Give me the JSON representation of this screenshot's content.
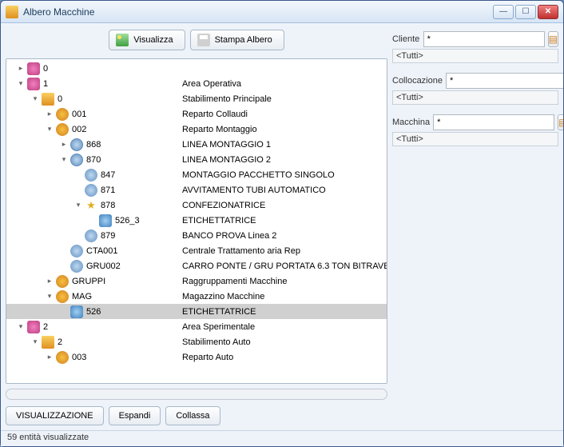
{
  "window": {
    "title": "Albero Macchine"
  },
  "toolbar": {
    "view": "Visualizza",
    "print": "Stampa Albero"
  },
  "tree": [
    {
      "lvl": 0,
      "exp": "collapsed",
      "icon": "area",
      "code": "0",
      "desc": "",
      "sel": false
    },
    {
      "lvl": 0,
      "exp": "expanded",
      "icon": "area",
      "code": "1",
      "desc": "Area Operativa",
      "sel": false
    },
    {
      "lvl": 1,
      "exp": "expanded",
      "icon": "plant",
      "code": "0",
      "desc": "Stabilimento Principale",
      "sel": false
    },
    {
      "lvl": 2,
      "exp": "collapsed",
      "icon": "dept",
      "code": "001",
      "desc": "Reparto Collaudi",
      "sel": false
    },
    {
      "lvl": 2,
      "exp": "expanded",
      "icon": "dept",
      "code": "002",
      "desc": "Reparto Montaggio",
      "sel": false
    },
    {
      "lvl": 3,
      "exp": "collapsed",
      "icon": "line",
      "code": "868",
      "desc": "LINEA MONTAGGIO 1",
      "sel": false
    },
    {
      "lvl": 3,
      "exp": "expanded",
      "icon": "line",
      "code": "870",
      "desc": "LINEA MONTAGGIO 2",
      "sel": false
    },
    {
      "lvl": 4,
      "exp": "leaf",
      "icon": "mach",
      "code": "847",
      "desc": "MONTAGGIO PACCHETTO SINGOLO",
      "sel": false
    },
    {
      "lvl": 4,
      "exp": "leaf",
      "icon": "mach",
      "code": "871",
      "desc": "AVVITAMENTO TUBI AUTOMATICO",
      "sel": false
    },
    {
      "lvl": 4,
      "exp": "expanded",
      "icon": "star",
      "code": "878",
      "desc": "CONFEZIONATRICE",
      "sel": false
    },
    {
      "lvl": 5,
      "exp": "leaf",
      "icon": "tag",
      "code": "526_3",
      "desc": "ETICHETTATRICE",
      "sel": false
    },
    {
      "lvl": 4,
      "exp": "leaf",
      "icon": "mach",
      "code": "879",
      "desc": "BANCO PROVA Linea 2",
      "sel": false
    },
    {
      "lvl": 3,
      "exp": "leaf",
      "icon": "mach",
      "code": "CTA001",
      "desc": "Centrale Trattamento aria Rep",
      "sel": false
    },
    {
      "lvl": 3,
      "exp": "leaf",
      "icon": "mach",
      "code": "GRU002",
      "desc": "CARRO PONTE / GRU PORTATA 6.3 TON BITRAVE",
      "sel": false
    },
    {
      "lvl": 2,
      "exp": "collapsed",
      "icon": "dept",
      "code": "GRUPPI",
      "desc": "Raggruppamenti Macchine",
      "sel": false
    },
    {
      "lvl": 2,
      "exp": "expanded",
      "icon": "dept",
      "code": "MAG",
      "desc": "Magazzino Macchine",
      "sel": false
    },
    {
      "lvl": 3,
      "exp": "leaf",
      "icon": "tag",
      "code": "526",
      "desc": "ETICHETTATRICE",
      "sel": true
    },
    {
      "lvl": 0,
      "exp": "expanded",
      "icon": "area",
      "code": "2",
      "desc": "Area Sperimentale",
      "sel": false
    },
    {
      "lvl": 1,
      "exp": "expanded",
      "icon": "plant",
      "code": "2",
      "desc": "Stabilimento Auto",
      "sel": false
    },
    {
      "lvl": 2,
      "exp": "collapsed",
      "icon": "dept",
      "code": "003",
      "desc": "Reparto Auto",
      "sel": false
    }
  ],
  "bottom": {
    "viz": "VISUALIZZAZIONE",
    "expand": "Espandi",
    "collapse": "Collassa"
  },
  "filters": {
    "cliente": {
      "label": "Cliente",
      "value": "*",
      "current": "<Tutti>"
    },
    "collocazione": {
      "label": "Collocazione",
      "value": "*",
      "current": "<Tutti>"
    },
    "macchina": {
      "label": "Macchina",
      "value": "*",
      "current": "<Tutti>"
    }
  },
  "status": "59 entità visualizzate",
  "colors": {
    "titlebar_top": "#f3f7fc",
    "titlebar_bottom": "#d6e4f5",
    "body_bg": "#eef3fa",
    "border": "#a8c0de",
    "selected_row": "#d0d0d0"
  }
}
